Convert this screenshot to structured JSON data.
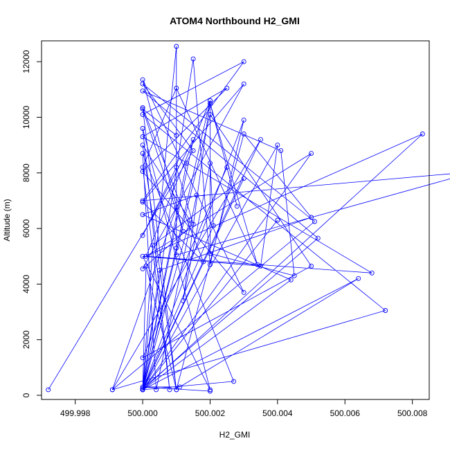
{
  "chart_data": {
    "type": "line",
    "title": "ATOM4 Northbound H2_GMI",
    "xlabel": "H2_GMI",
    "ylabel": "Altitude (m)",
    "xlim": [
      499.997,
      500.0085
    ],
    "ylim": [
      -150,
      12750
    ],
    "x_ticks": [
      499.998,
      500.0,
      500.002,
      500.004,
      500.006,
      500.008
    ],
    "x_tick_labels": [
      "499.998",
      "500.000",
      "500.002",
      "500.004",
      "500.006",
      "500.008"
    ],
    "y_ticks": [
      0,
      2000,
      4000,
      6000,
      8000,
      10000,
      12000
    ],
    "y_tick_labels": [
      "0",
      "2000",
      "4000",
      "6000",
      "8000",
      "10000",
      "12000"
    ],
    "grid": false,
    "legend": "none",
    "series_color": "#0000ff",
    "x": [
      499.9972,
      500.0015,
      500.0,
      500.0051,
      499.9991,
      500.0072,
      500.0,
      500.003,
      500.0,
      500.0099,
      500.001,
      500.001,
      500.0,
      500.0012,
      500.0,
      500.003,
      500.0,
      500.0025,
      500.0,
      500.0068,
      500.0001,
      500.002,
      500.002,
      500.0045,
      500.0041,
      500.0,
      500.0052,
      500.0,
      500.0015,
      500.0,
      500.001,
      500.0015,
      500.0,
      500.003,
      500.0,
      500.0018,
      500.0,
      500.001,
      500.003,
      500.005,
      500.0005,
      500.0,
      500.0035,
      499.9991,
      500.001,
      500.001,
      500.0,
      500.0014,
      500.0,
      500.001,
      500.0001,
      500.0,
      500.002,
      500.005,
      500.0,
      500.0025,
      500.0028,
      500.002,
      500.0034,
      500.001,
      500.0,
      500.0008,
      500.0,
      500.002,
      500.0,
      500.0035,
      500.004,
      500.0,
      500.003,
      500.0003,
      500.0,
      500.0021,
      500.002,
      500.0012,
      500.002,
      500.001,
      500.0,
      500.0083,
      500.0001,
      500.005,
      500.0,
      500.0015,
      500.002,
      500.003,
      500.0,
      500.0013,
      500.0,
      500.0044,
      500.0,
      500.0016,
      500.0004,
      500.0,
      500.0027,
      500.0,
      500.004,
      500.0,
      500.0064,
      500.0011,
      500.0,
      500.002
    ],
    "y": [
      200,
      8800,
      11200,
      6250,
      200,
      3050,
      10100,
      12000,
      7000,
      8050,
      5050,
      9350,
      10300,
      5900,
      11350,
      3700,
      8050,
      11050,
      9300,
      4400,
      5000,
      10600,
      5100,
      4300,
      8800,
      10950,
      5650,
      250,
      9200,
      5750,
      8200,
      6150,
      4550,
      11200,
      6950,
      4800,
      10350,
      200,
      9400,
      6400,
      4500,
      200,
      9200,
      200,
      6750,
      12550,
      200,
      6300,
      9000,
      200,
      4650,
      200,
      10100,
      4650,
      1350,
      8200,
      6800,
      10500,
      4700,
      11050,
      8200,
      200,
      9600,
      200,
      5000,
      4650,
      9000,
      200,
      7800,
      5400,
      200,
      6100,
      8350,
      3400,
      10600,
      5300,
      200,
      9400,
      5000,
      8700,
      200,
      12100,
      4700,
      9900,
      200,
      8350,
      200,
      4150,
      6500,
      7200,
      200,
      8700,
      500,
      200,
      6300,
      200,
      4200,
      300,
      300,
      150
    ]
  }
}
